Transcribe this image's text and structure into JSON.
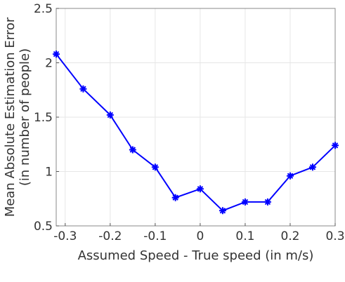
{
  "chart_data": {
    "type": "line",
    "title": "",
    "xlabel": "Assumed Speed - True speed (in m/s)",
    "ylabel_lines": [
      "Mean Absolute Estimation Error",
      "(in number of people)"
    ],
    "xlim": [
      -0.32,
      0.3
    ],
    "ylim": [
      0.5,
      2.5
    ],
    "xticks": [
      -0.3,
      -0.2,
      -0.1,
      0,
      0.1,
      0.2,
      0.3
    ],
    "xtick_labels": [
      "-0.3",
      "-0.2",
      "-0.1",
      "0",
      "0.1",
      "0.2",
      "0.3"
    ],
    "yticks": [
      0.5,
      1,
      1.5,
      2,
      2.5
    ],
    "ytick_labels": [
      "0.5",
      "1",
      "1.5",
      "2",
      "2.5"
    ],
    "grid": true,
    "series": [
      {
        "x": [
          -0.32,
          -0.26,
          -0.2,
          -0.15,
          -0.1,
          -0.055,
          0,
          0.05,
          0.1,
          0.15,
          0.2,
          0.25,
          0.3
        ],
        "y": [
          2.08,
          1.76,
          1.52,
          1.2,
          1.04,
          0.76,
          0.84,
          0.64,
          0.72,
          0.72,
          0.96,
          1.04,
          1.24
        ],
        "color": "#0000ff",
        "marker": "asterisk"
      }
    ]
  }
}
